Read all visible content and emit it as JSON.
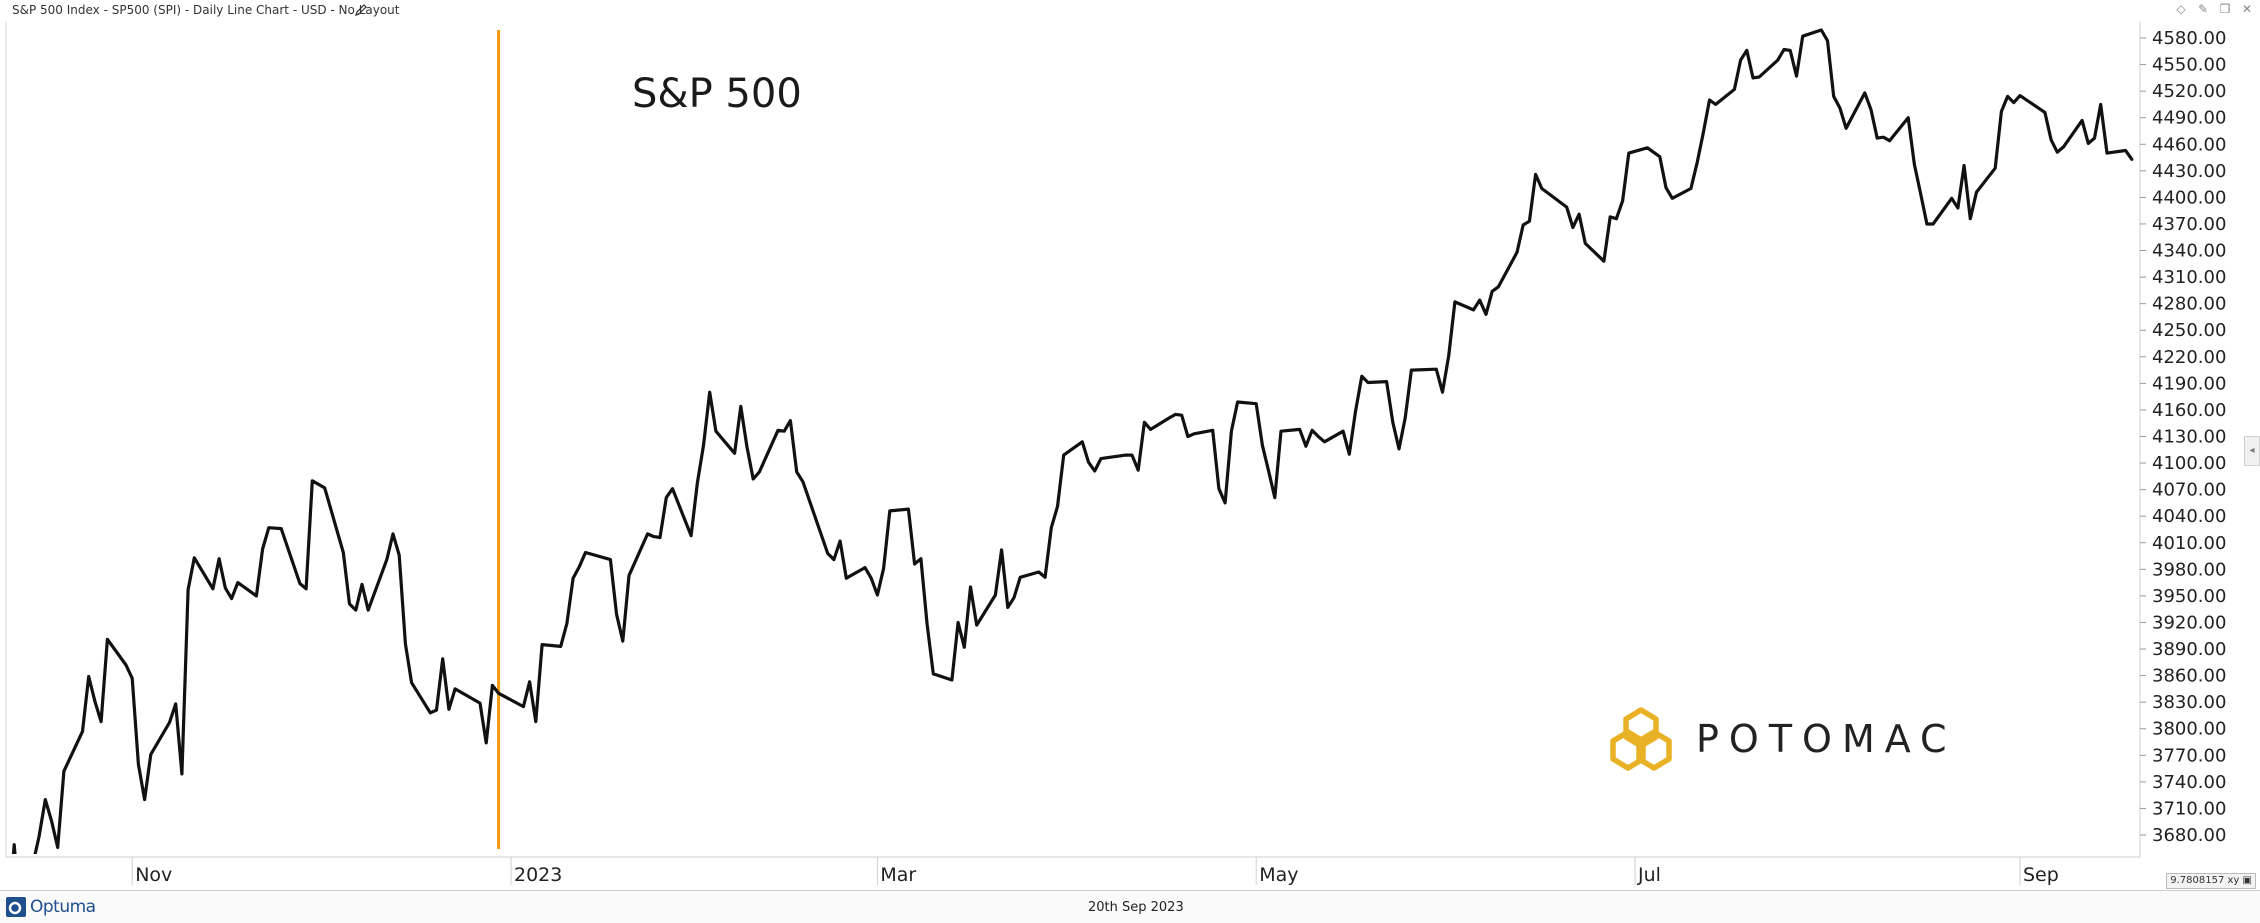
{
  "window": {
    "title": "S&P 500 Index  - SP500 (SPI) - Daily Line Chart - USD - No Layout"
  },
  "footer": {
    "brand": "Optuma",
    "date": "20th Sep 2023",
    "scale_readout": "9.7808157"
  },
  "logo": {
    "text": "POTOMAC",
    "color": "#E9B125"
  },
  "colors": {
    "line": "#111111",
    "marker": "#F39C12",
    "grid": "#e6e6e6"
  },
  "chart_data": {
    "type": "line",
    "title": "S&P 500",
    "xlabel": "",
    "ylabel": "",
    "x_tick_labels": [
      "Nov",
      "2023",
      "Mar",
      "May",
      "Jul",
      "Sep"
    ],
    "y_tick_labels": [
      "3680.00",
      "3710.00",
      "3740.00",
      "3770.00",
      "3800.00",
      "3830.00",
      "3860.00",
      "3890.00",
      "3920.00",
      "3950.00",
      "3980.00",
      "4010.00",
      "4040.00",
      "4070.00",
      "4100.00",
      "4130.00",
      "4160.00",
      "4190.00",
      "4220.00",
      "4250.00",
      "4280.00",
      "4310.00",
      "4340.00",
      "4370.00",
      "4400.00",
      "4430.00",
      "4460.00",
      "4490.00",
      "4520.00",
      "4550.00",
      "4580.00"
    ],
    "ylim": [
      3680,
      4580
    ],
    "xlim": [
      "2022-10-12",
      "2023-09-20"
    ],
    "vertical_marker": {
      "date": "2022-12-30",
      "color": "#F39C12"
    },
    "grid": false,
    "series": [
      {
        "points": [
          [
            "2022-10-12",
            3578
          ],
          [
            "2022-10-13",
            3669
          ],
          [
            "2022-10-14",
            3584
          ],
          [
            "2022-10-17",
            3678
          ],
          [
            "2022-10-18",
            3720
          ],
          [
            "2022-10-19",
            3696
          ],
          [
            "2022-10-20",
            3666
          ],
          [
            "2022-10-21",
            3752
          ],
          [
            "2022-10-24",
            3797
          ],
          [
            "2022-10-25",
            3859
          ],
          [
            "2022-10-26",
            3831
          ],
          [
            "2022-10-27",
            3808
          ],
          [
            "2022-10-28",
            3901
          ],
          [
            "2022-10-31",
            3872
          ],
          [
            "2022-11-01",
            3857
          ],
          [
            "2022-11-02",
            3760
          ],
          [
            "2022-11-03",
            3720
          ],
          [
            "2022-11-04",
            3771
          ],
          [
            "2022-11-07",
            3807
          ],
          [
            "2022-11-08",
            3828
          ],
          [
            "2022-11-09",
            3749
          ],
          [
            "2022-11-10",
            3957
          ],
          [
            "2022-11-11",
            3993
          ],
          [
            "2022-11-14",
            3958
          ],
          [
            "2022-11-15",
            3992
          ],
          [
            "2022-11-16",
            3959
          ],
          [
            "2022-11-17",
            3947
          ],
          [
            "2022-11-18",
            3965
          ],
          [
            "2022-11-21",
            3950
          ],
          [
            "2022-11-22",
            4003
          ],
          [
            "2022-11-23",
            4027
          ],
          [
            "2022-11-25",
            4026
          ],
          [
            "2022-11-28",
            3964
          ],
          [
            "2022-11-29",
            3958
          ],
          [
            "2022-11-30",
            4080
          ],
          [
            "2022-12-01",
            4076
          ],
          [
            "2022-12-02",
            4072
          ],
          [
            "2022-12-05",
            3999
          ],
          [
            "2022-12-06",
            3941
          ],
          [
            "2022-12-07",
            3934
          ],
          [
            "2022-12-08",
            3963
          ],
          [
            "2022-12-09",
            3934
          ],
          [
            "2022-12-12",
            3991
          ],
          [
            "2022-12-13",
            4020
          ],
          [
            "2022-12-14",
            3996
          ],
          [
            "2022-12-15",
            3896
          ],
          [
            "2022-12-16",
            3852
          ],
          [
            "2022-12-19",
            3818
          ],
          [
            "2022-12-20",
            3821
          ],
          [
            "2022-12-21",
            3879
          ],
          [
            "2022-12-22",
            3822
          ],
          [
            "2022-12-23",
            3845
          ],
          [
            "2022-12-27",
            3829
          ],
          [
            "2022-12-28",
            3784
          ],
          [
            "2022-12-29",
            3849
          ],
          [
            "2022-12-30",
            3840
          ],
          [
            "2023-01-03",
            3825
          ],
          [
            "2023-01-04",
            3853
          ],
          [
            "2023-01-05",
            3808
          ],
          [
            "2023-01-06",
            3895
          ],
          [
            "2023-01-09",
            3893
          ],
          [
            "2023-01-10",
            3919
          ],
          [
            "2023-01-11",
            3970
          ],
          [
            "2023-01-12",
            3983
          ],
          [
            "2023-01-13",
            3999
          ],
          [
            "2023-01-17",
            3991
          ],
          [
            "2023-01-18",
            3929
          ],
          [
            "2023-01-19",
            3899
          ],
          [
            "2023-01-20",
            3973
          ],
          [
            "2023-01-23",
            4020
          ],
          [
            "2023-01-24",
            4017
          ],
          [
            "2023-01-25",
            4016
          ],
          [
            "2023-01-26",
            4061
          ],
          [
            "2023-01-27",
            4071
          ],
          [
            "2023-01-30",
            4018
          ],
          [
            "2023-01-31",
            4077
          ],
          [
            "2023-02-01",
            4120
          ],
          [
            "2023-02-02",
            4180
          ],
          [
            "2023-02-03",
            4136
          ],
          [
            "2023-02-06",
            4111
          ],
          [
            "2023-02-07",
            4164
          ],
          [
            "2023-02-08",
            4118
          ],
          [
            "2023-02-09",
            4082
          ],
          [
            "2023-02-10",
            4090
          ],
          [
            "2023-02-13",
            4137
          ],
          [
            "2023-02-14",
            4136
          ],
          [
            "2023-02-15",
            4148
          ],
          [
            "2023-02-16",
            4090
          ],
          [
            "2023-02-17",
            4079
          ],
          [
            "2023-02-21",
            3998
          ],
          [
            "2023-02-22",
            3991
          ],
          [
            "2023-02-23",
            4012
          ],
          [
            "2023-02-24",
            3970
          ],
          [
            "2023-02-27",
            3982
          ],
          [
            "2023-02-28",
            3970
          ],
          [
            "2023-03-01",
            3951
          ],
          [
            "2023-03-02",
            3981
          ],
          [
            "2023-03-03",
            4046
          ],
          [
            "2023-03-06",
            4048
          ],
          [
            "2023-03-07",
            3986
          ],
          [
            "2023-03-08",
            3992
          ],
          [
            "2023-03-09",
            3918
          ],
          [
            "2023-03-10",
            3862
          ],
          [
            "2023-03-13",
            3855
          ],
          [
            "2023-03-14",
            3920
          ],
          [
            "2023-03-15",
            3892
          ],
          [
            "2023-03-16",
            3960
          ],
          [
            "2023-03-17",
            3917
          ],
          [
            "2023-03-20",
            3951
          ],
          [
            "2023-03-21",
            4002
          ],
          [
            "2023-03-22",
            3937
          ],
          [
            "2023-03-23",
            3948
          ],
          [
            "2023-03-24",
            3971
          ],
          [
            "2023-03-27",
            3977
          ],
          [
            "2023-03-28",
            3971
          ],
          [
            "2023-03-29",
            4027
          ],
          [
            "2023-03-30",
            4051
          ],
          [
            "2023-03-31",
            4109
          ],
          [
            "2023-04-03",
            4124
          ],
          [
            "2023-04-04",
            4101
          ],
          [
            "2023-04-05",
            4091
          ],
          [
            "2023-04-06",
            4105
          ],
          [
            "2023-04-10",
            4109
          ],
          [
            "2023-04-11",
            4109
          ],
          [
            "2023-04-12",
            4092
          ],
          [
            "2023-04-13",
            4146
          ],
          [
            "2023-04-14",
            4138
          ],
          [
            "2023-04-17",
            4151
          ],
          [
            "2023-04-18",
            4155
          ],
          [
            "2023-04-19",
            4154
          ],
          [
            "2023-04-20",
            4130
          ],
          [
            "2023-04-21",
            4133
          ],
          [
            "2023-04-24",
            4137
          ],
          [
            "2023-04-25",
            4071
          ],
          [
            "2023-04-26",
            4055
          ],
          [
            "2023-04-27",
            4136
          ],
          [
            "2023-04-28",
            4169
          ],
          [
            "2023-05-01",
            4167
          ],
          [
            "2023-05-02",
            4120
          ],
          [
            "2023-05-03",
            4091
          ],
          [
            "2023-05-04",
            4061
          ],
          [
            "2023-05-05",
            4136
          ],
          [
            "2023-05-08",
            4138
          ],
          [
            "2023-05-09",
            4119
          ],
          [
            "2023-05-10",
            4137
          ],
          [
            "2023-05-11",
            4130
          ],
          [
            "2023-05-12",
            4124
          ],
          [
            "2023-05-15",
            4136
          ],
          [
            "2023-05-16",
            4110
          ],
          [
            "2023-05-17",
            4159
          ],
          [
            "2023-05-18",
            4198
          ],
          [
            "2023-05-19",
            4191
          ],
          [
            "2023-05-22",
            4192
          ],
          [
            "2023-05-23",
            4146
          ],
          [
            "2023-05-24",
            4116
          ],
          [
            "2023-05-25",
            4151
          ],
          [
            "2023-05-26",
            4205
          ],
          [
            "2023-05-30",
            4206
          ],
          [
            "2023-05-31",
            4180
          ],
          [
            "2023-06-01",
            4221
          ],
          [
            "2023-06-02",
            4282
          ],
          [
            "2023-06-05",
            4273
          ],
          [
            "2023-06-06",
            4284
          ],
          [
            "2023-06-07",
            4268
          ],
          [
            "2023-06-08",
            4294
          ],
          [
            "2023-06-09",
            4299
          ],
          [
            "2023-06-12",
            4338
          ],
          [
            "2023-06-13",
            4369
          ],
          [
            "2023-06-14",
            4373
          ],
          [
            "2023-06-15",
            4426
          ],
          [
            "2023-06-16",
            4410
          ],
          [
            "2023-06-20",
            4389
          ],
          [
            "2023-06-21",
            4366
          ],
          [
            "2023-06-22",
            4381
          ],
          [
            "2023-06-23",
            4348
          ],
          [
            "2023-06-26",
            4328
          ],
          [
            "2023-06-27",
            4378
          ],
          [
            "2023-06-28",
            4376
          ],
          [
            "2023-06-29",
            4396
          ],
          [
            "2023-06-30",
            4450
          ],
          [
            "2023-07-03",
            4456
          ],
          [
            "2023-07-05",
            4446
          ],
          [
            "2023-07-06",
            4411
          ],
          [
            "2023-07-07",
            4399
          ],
          [
            "2023-07-10",
            4410
          ],
          [
            "2023-07-11",
            4439
          ],
          [
            "2023-07-12",
            4473
          ],
          [
            "2023-07-13",
            4510
          ],
          [
            "2023-07-14",
            4505
          ],
          [
            "2023-07-17",
            4522
          ],
          [
            "2023-07-18",
            4555
          ],
          [
            "2023-07-19",
            4566
          ],
          [
            "2023-07-20",
            4535
          ],
          [
            "2023-07-21",
            4536
          ],
          [
            "2023-07-24",
            4555
          ],
          [
            "2023-07-25",
            4567
          ],
          [
            "2023-07-26",
            4566
          ],
          [
            "2023-07-27",
            4537
          ],
          [
            "2023-07-28",
            4582
          ],
          [
            "2023-07-31",
            4589
          ],
          [
            "2023-08-01",
            4577
          ],
          [
            "2023-08-02",
            4514
          ],
          [
            "2023-08-03",
            4501
          ],
          [
            "2023-08-04",
            4478
          ],
          [
            "2023-08-07",
            4518
          ],
          [
            "2023-08-08",
            4499
          ],
          [
            "2023-08-09",
            4467
          ],
          [
            "2023-08-10",
            4468
          ],
          [
            "2023-08-11",
            4464
          ],
          [
            "2023-08-14",
            4490
          ],
          [
            "2023-08-15",
            4437
          ],
          [
            "2023-08-16",
            4404
          ],
          [
            "2023-08-17",
            4370
          ],
          [
            "2023-08-18",
            4370
          ],
          [
            "2023-08-21",
            4399
          ],
          [
            "2023-08-22",
            4388
          ],
          [
            "2023-08-23",
            4436
          ],
          [
            "2023-08-24",
            4376
          ],
          [
            "2023-08-25",
            4406
          ],
          [
            "2023-08-28",
            4433
          ],
          [
            "2023-08-29",
            4497
          ],
          [
            "2023-08-30",
            4514
          ],
          [
            "2023-08-31",
            4507
          ],
          [
            "2023-09-01",
            4515
          ],
          [
            "2023-09-05",
            4496
          ],
          [
            "2023-09-06",
            4465
          ],
          [
            "2023-09-07",
            4451
          ],
          [
            "2023-09-08",
            4457
          ],
          [
            "2023-09-11",
            4487
          ],
          [
            "2023-09-12",
            4461
          ],
          [
            "2023-09-13",
            4467
          ],
          [
            "2023-09-14",
            4505
          ],
          [
            "2023-09-15",
            4450
          ],
          [
            "2023-09-18",
            4453
          ],
          [
            "2023-09-19",
            4443
          ]
        ]
      }
    ]
  }
}
